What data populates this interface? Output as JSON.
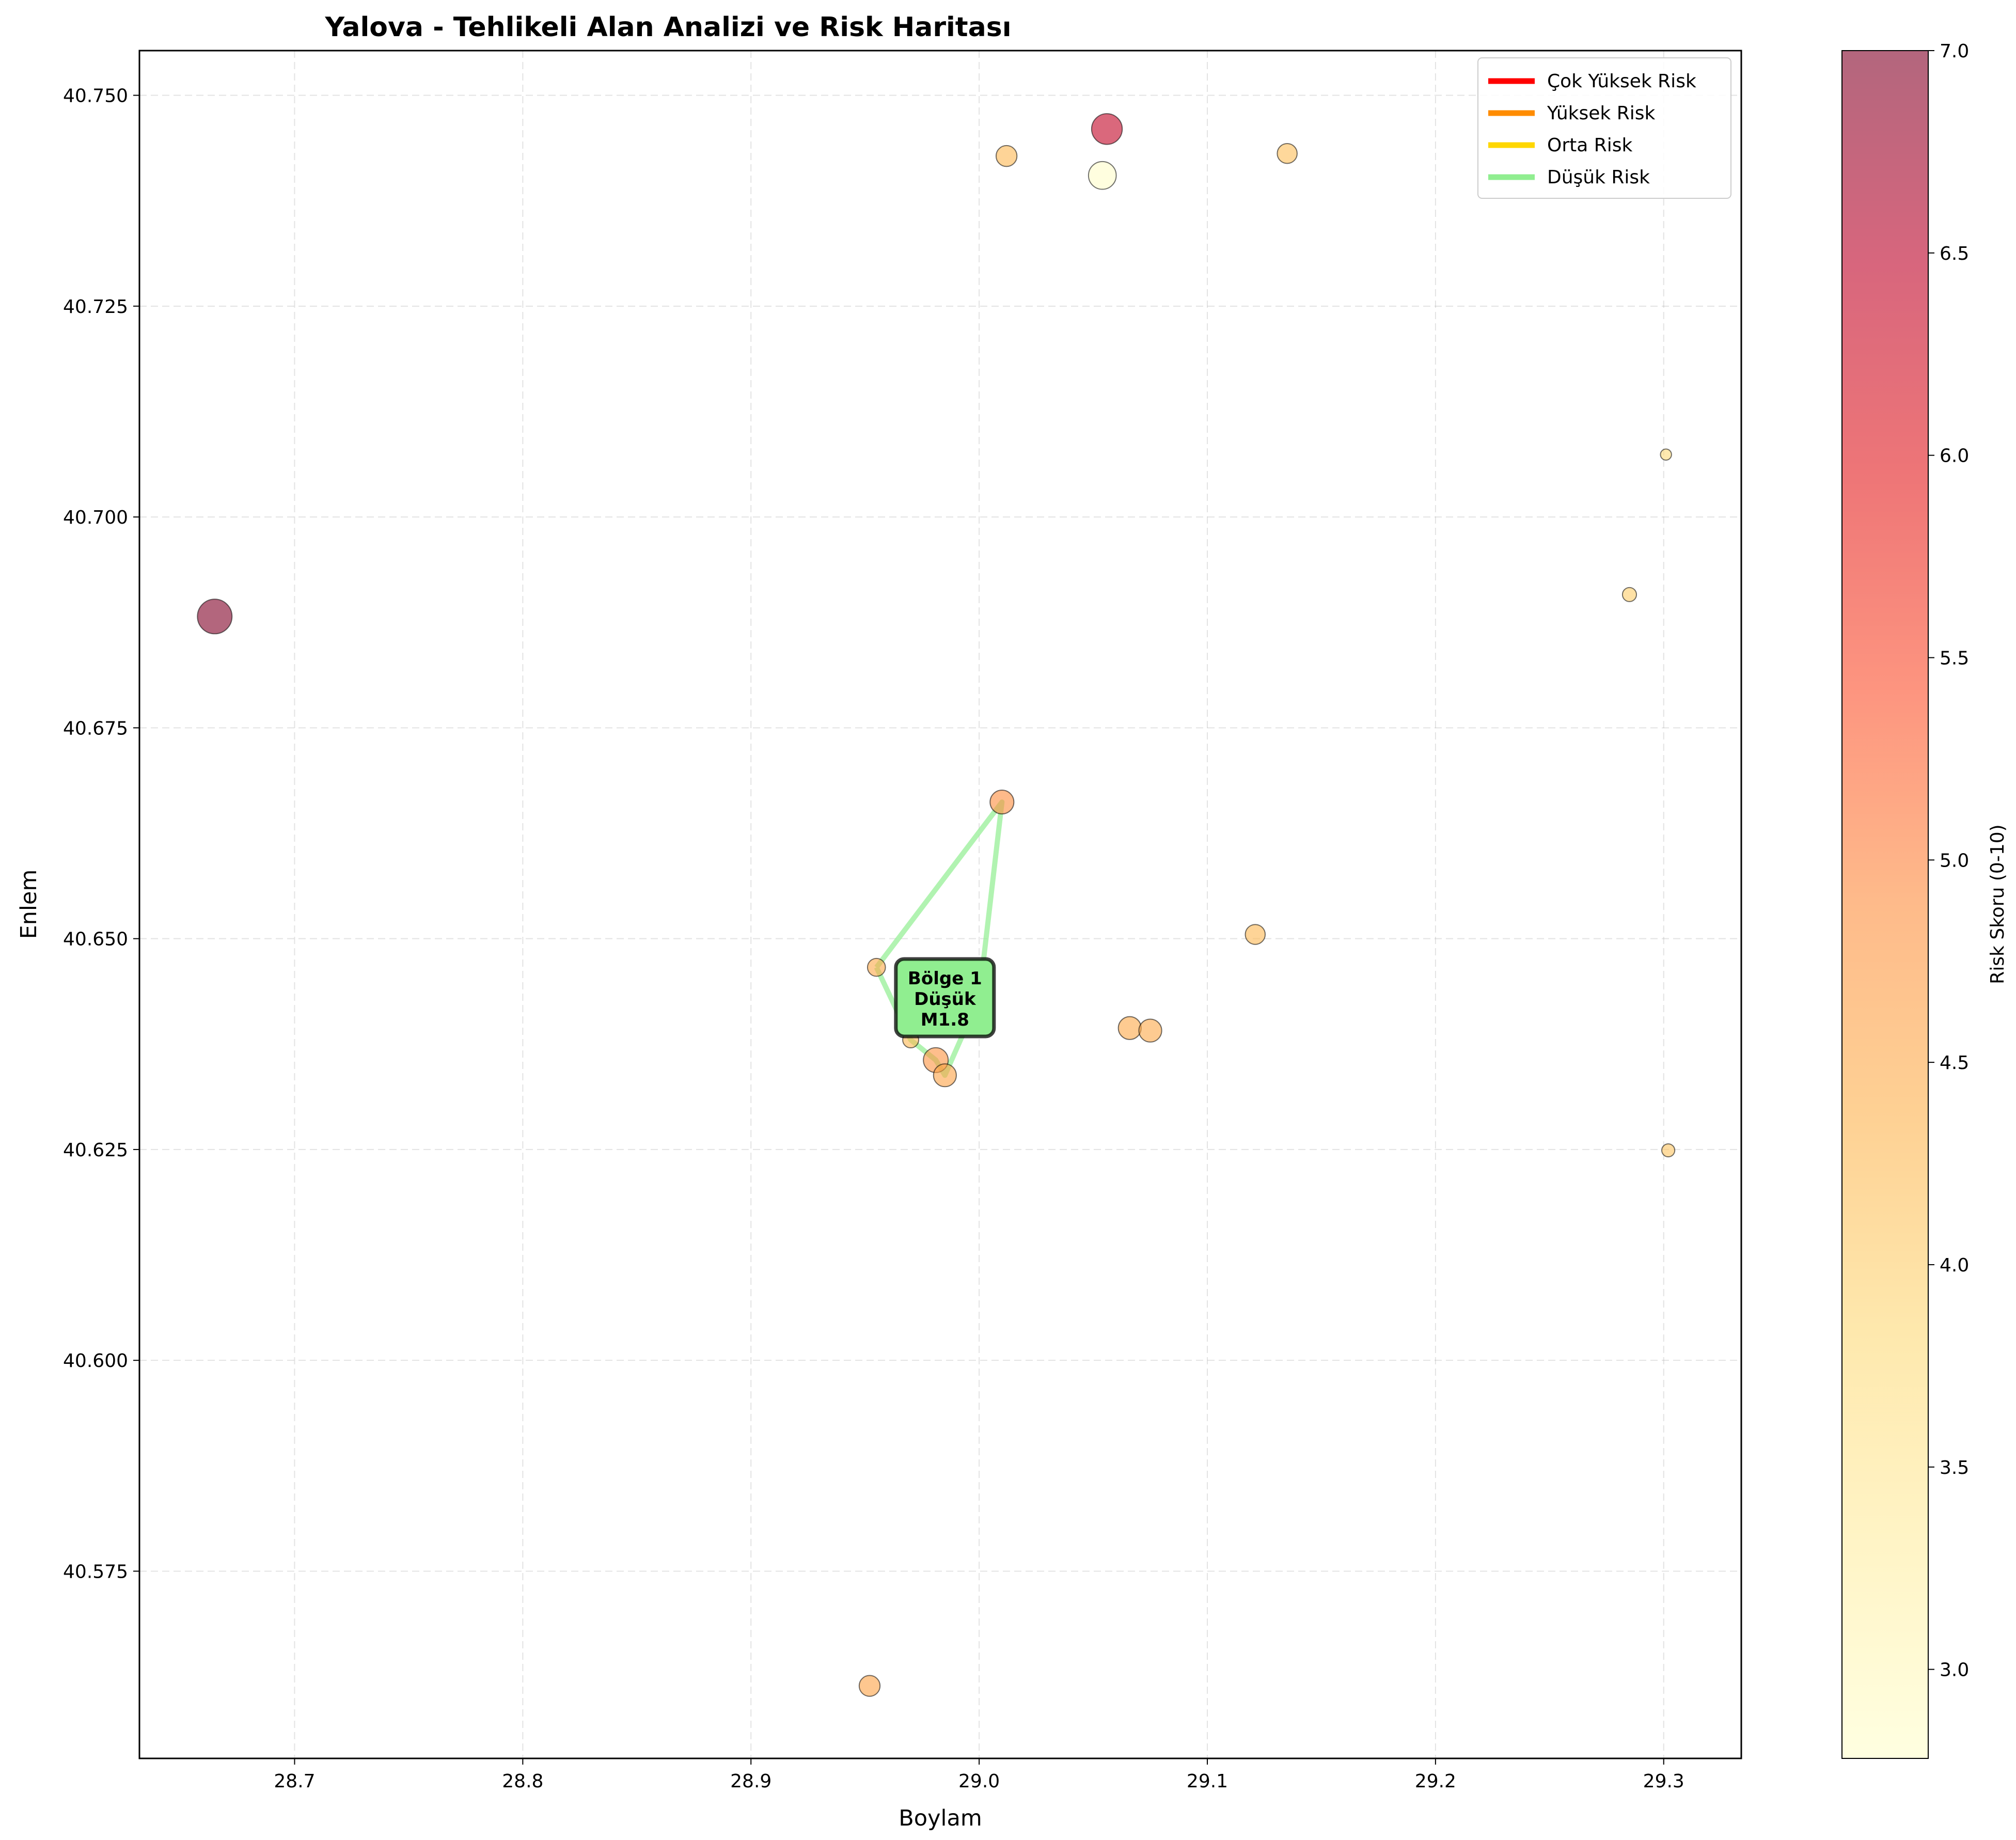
{
  "chart_data": {
    "type": "scatter",
    "title": "Yalova - Tehlikeli Alan Analizi ve Risk Haritası",
    "xlabel": "Boylam",
    "ylabel": "Enlem",
    "xlim": [
      28.632,
      29.334
    ],
    "ylim": [
      40.5528,
      40.7553
    ],
    "xticks": [
      "28.7",
      "28.8",
      "28.9",
      "29.0",
      "29.1",
      "29.2",
      "29.3"
    ],
    "yticks": [
      "40.575",
      "40.600",
      "40.625",
      "40.650",
      "40.675",
      "40.700",
      "40.725",
      "40.750"
    ],
    "grid": true,
    "legend_position": "top-right",
    "legend": [
      {
        "label": "Çok Yüksek Risk",
        "color": "#ff0000"
      },
      {
        "label": "Yüksek Risk",
        "color": "#ff8c00"
      },
      {
        "label": "Orta Risk",
        "color": "#ffd700"
      },
      {
        "label": "Düşük Risk",
        "color": "#90ee90"
      }
    ],
    "colorbar": {
      "label": "Risk Skoru (0-10)",
      "min": 2.78,
      "max": 7.0,
      "ticks": [
        "3.0",
        "3.5",
        "4.0",
        "4.5",
        "5.0",
        "5.5",
        "6.0",
        "6.5",
        "7.0"
      ],
      "colormap": "YlOrRd"
    },
    "points": [
      {
        "x": 28.665,
        "y": 40.6882,
        "risk": 7.0,
        "magnitude": 3.0
      },
      {
        "x": 29.056,
        "y": 40.746,
        "risk": 6.4,
        "magnitude": 2.6
      },
      {
        "x": 29.054,
        "y": 40.7405,
        "risk": 2.8,
        "magnitude": 2.3
      },
      {
        "x": 29.012,
        "y": 40.7428,
        "risk": 4.3,
        "magnitude": 1.6
      },
      {
        "x": 29.135,
        "y": 40.7431,
        "risk": 4.2,
        "magnitude": 1.5
      },
      {
        "x": 29.301,
        "y": 40.7074,
        "risk": 3.8,
        "magnitude": 0.6
      },
      {
        "x": 29.285,
        "y": 40.6908,
        "risk": 4.0,
        "magnitude": 0.9
      },
      {
        "x": 29.01,
        "y": 40.6662,
        "risk": 4.9,
        "magnitude": 1.9
      },
      {
        "x": 29.121,
        "y": 40.6505,
        "risk": 4.3,
        "magnitude": 1.5
      },
      {
        "x": 28.955,
        "y": 40.6466,
        "risk": 4.5,
        "magnitude": 1.3
      },
      {
        "x": 29.0,
        "y": 40.643,
        "risk": 4.4,
        "magnitude": 1.5
      },
      {
        "x": 28.97,
        "y": 40.638,
        "risk": 4.3,
        "magnitude": 1.1
      },
      {
        "x": 29.066,
        "y": 40.6394,
        "risk": 4.5,
        "magnitude": 1.8
      },
      {
        "x": 29.075,
        "y": 40.6391,
        "risk": 4.5,
        "magnitude": 1.8
      },
      {
        "x": 28.981,
        "y": 40.6356,
        "risk": 4.8,
        "magnitude": 2.0
      },
      {
        "x": 28.985,
        "y": 40.6338,
        "risk": 4.6,
        "magnitude": 1.8
      },
      {
        "x": 29.302,
        "y": 40.6249,
        "risk": 4.1,
        "magnitude": 0.8
      },
      {
        "x": 28.952,
        "y": 40.5614,
        "risk": 4.6,
        "magnitude": 1.6
      }
    ],
    "zones": [
      {
        "label_lines": [
          "Bölge 1",
          "Düşük",
          "M1.8"
        ],
        "risk_level": "Düşük Risk",
        "color": "#90ee90",
        "polygon": [
          [
            28.955,
            40.6466
          ],
          [
            29.01,
            40.6662
          ],
          [
            29.0,
            40.643
          ],
          [
            28.985,
            40.6338
          ],
          [
            28.981,
            40.6356
          ],
          [
            28.97,
            40.638
          ],
          [
            28.955,
            40.6466
          ]
        ],
        "label_at": [
          28.985,
          40.643
        ]
      }
    ]
  }
}
